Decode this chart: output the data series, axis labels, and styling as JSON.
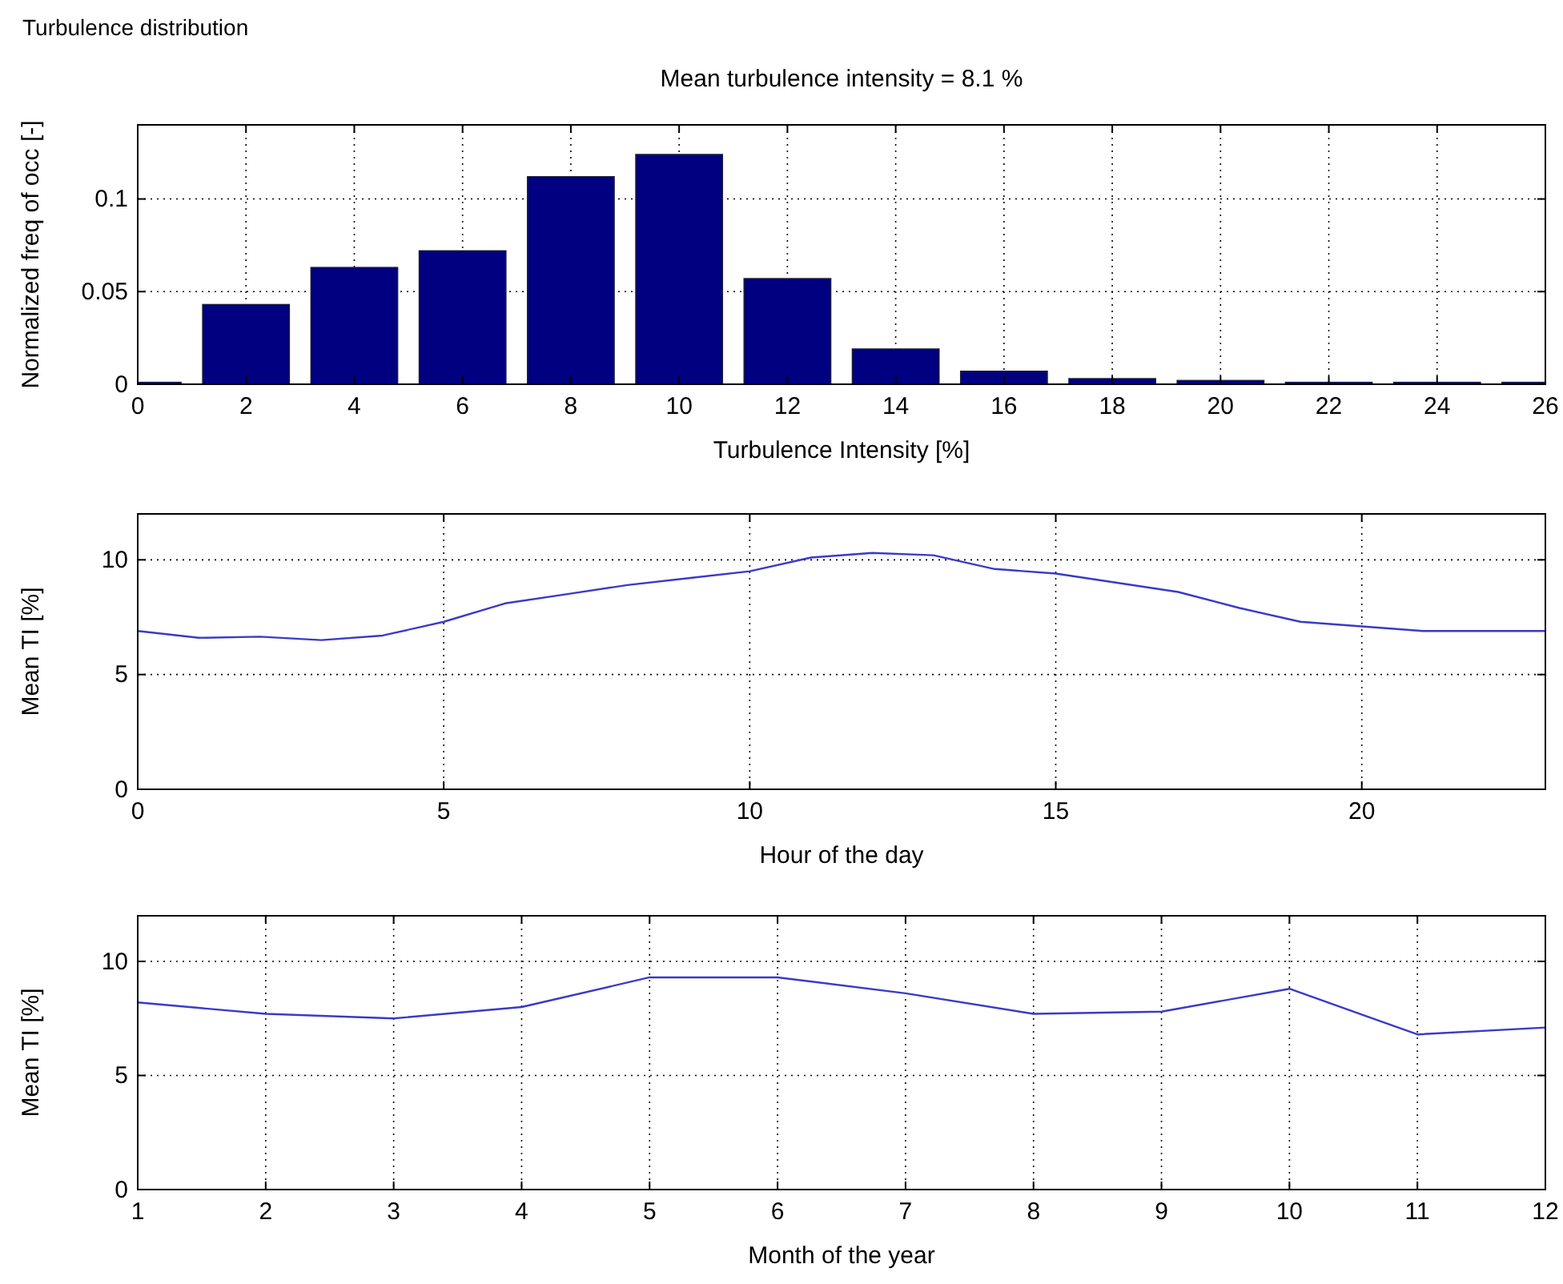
{
  "chart_data": [
    {
      "type": "bar",
      "title": "Turbulence distribution",
      "subtitle": "Mean turbulence intensity = 8.1 %",
      "xlabel": "Turbulence Intensity [%]",
      "ylabel": "Normalized freq of occ [-]",
      "x": [
        0,
        2,
        4,
        6,
        8,
        10,
        12,
        14,
        16,
        18,
        20,
        22,
        24,
        26
      ],
      "series": [
        {
          "color": "#000080",
          "values": [
            0.001,
            0.043,
            0.063,
            0.072,
            0.112,
            0.124,
            0.057,
            0.019,
            0.007,
            0.003,
            0.002,
            0.001,
            0.001,
            0.001
          ]
        }
      ],
      "xlim": [
        0,
        26
      ],
      "xticks": [
        0,
        2,
        4,
        6,
        8,
        10,
        12,
        14,
        16,
        18,
        20,
        22,
        24,
        26
      ],
      "ylim": [
        0,
        0.14
      ],
      "yticks": [
        0,
        0.05,
        0.1
      ],
      "grid": true
    },
    {
      "type": "line",
      "xlabel": "Hour of the day",
      "ylabel": "Mean TI [%]",
      "x": [
        0,
        1,
        2,
        3,
        4,
        5,
        6,
        7,
        8,
        9,
        10,
        11,
        12,
        13,
        14,
        15,
        16,
        17,
        18,
        19,
        20,
        21,
        22,
        23
      ],
      "series": [
        {
          "color": "#3a3ac8",
          "values": [
            6.9,
            6.6,
            6.65,
            6.5,
            6.7,
            7.3,
            8.1,
            8.5,
            8.9,
            9.2,
            9.5,
            10.1,
            10.3,
            10.2,
            9.6,
            9.4,
            9.0,
            8.6,
            7.9,
            7.3,
            7.1,
            6.9,
            6.9,
            6.9
          ]
        }
      ],
      "xlim": [
        0,
        23
      ],
      "xticks": [
        0,
        5,
        10,
        15,
        20
      ],
      "ylim": [
        0,
        12
      ],
      "yticks": [
        0,
        5,
        10
      ],
      "grid": true
    },
    {
      "type": "line",
      "xlabel": "Month of the year",
      "ylabel": "Mean TI [%]",
      "x": [
        1,
        2,
        3,
        4,
        5,
        6,
        7,
        8,
        9,
        10,
        11,
        12
      ],
      "series": [
        {
          "color": "#3a3ac8",
          "values": [
            8.2,
            7.7,
            7.5,
            8.0,
            9.3,
            9.3,
            8.6,
            7.7,
            7.8,
            8.8,
            6.8,
            7.1
          ]
        }
      ],
      "xlim": [
        1,
        12
      ],
      "xticks": [
        1,
        2,
        3,
        4,
        5,
        6,
        7,
        8,
        9,
        10,
        11,
        12
      ],
      "ylim": [
        0,
        12
      ],
      "yticks": [
        0,
        5,
        10
      ],
      "grid": true
    }
  ]
}
